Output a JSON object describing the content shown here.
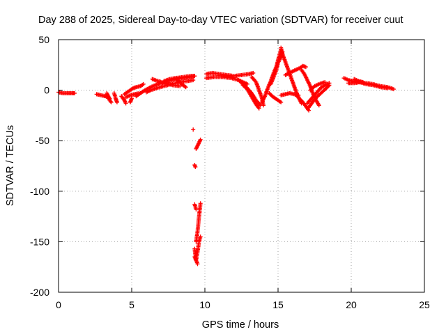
{
  "chart_data": {
    "type": "scatter",
    "title": "Day 288 of 2025, Sidereal Day-to-day VTEC variation (SDTVAR) for receiver cuut",
    "xlabel": "GPS time / hours",
    "ylabel": "SDTVAR / TECUs",
    "xlim": [
      0,
      25
    ],
    "ylim": [
      -200,
      50
    ],
    "xticks": [
      "0",
      "5",
      "10",
      "15",
      "20",
      "25"
    ],
    "yticks": [
      "50",
      "0",
      "-50",
      "-100",
      "-150",
      "-200"
    ],
    "grid": true,
    "marker": "+",
    "color": "#ff0000",
    "series": [
      {
        "name": "SDTVAR",
        "segments": [
          [
            [
              0.0,
              -2
            ],
            [
              0.3,
              -3
            ],
            [
              0.6,
              -3
            ],
            [
              0.9,
              -3
            ],
            [
              1.1,
              -3
            ]
          ],
          [
            [
              2.6,
              -4
            ],
            [
              2.9,
              -5
            ],
            [
              3.2,
              -6
            ],
            [
              3.5,
              -8
            ]
          ],
          [
            [
              3.3,
              -3
            ],
            [
              3.4,
              -6
            ],
            [
              3.5,
              -10
            ],
            [
              3.6,
              -12
            ]
          ],
          [
            [
              3.8,
              -3
            ],
            [
              3.9,
              -8
            ],
            [
              4.0,
              -12
            ]
          ],
          [
            [
              4.3,
              -6
            ],
            [
              4.5,
              -10
            ],
            [
              4.6,
              -13
            ]
          ],
          [
            [
              4.5,
              -4
            ],
            [
              4.7,
              -2
            ],
            [
              4.9,
              0
            ],
            [
              5.1,
              2
            ],
            [
              5.3,
              3
            ],
            [
              5.6,
              4
            ],
            [
              5.8,
              6
            ]
          ],
          [
            [
              4.6,
              -7
            ],
            [
              4.9,
              -5
            ],
            [
              5.2,
              -4
            ],
            [
              5.5,
              -3
            ]
          ],
          [
            [
              4.9,
              -12
            ],
            [
              5.0,
              -8
            ]
          ],
          [
            [
              5.3,
              -6
            ],
            [
              5.6,
              -3
            ],
            [
              5.9,
              0
            ],
            [
              6.3,
              3
            ],
            [
              6.6,
              5
            ],
            [
              7.0,
              7
            ],
            [
              7.5,
              9
            ],
            [
              8.0,
              11
            ],
            [
              8.5,
              12
            ],
            [
              9.0,
              13
            ],
            [
              9.3,
              14
            ]
          ],
          [
            [
              6.0,
              -2
            ],
            [
              6.3,
              0
            ],
            [
              6.7,
              2
            ],
            [
              7.2,
              4
            ],
            [
              7.7,
              6
            ],
            [
              8.3,
              8
            ],
            [
              8.8,
              9
            ],
            [
              9.2,
              10
            ]
          ],
          [
            [
              6.4,
              11
            ],
            [
              6.8,
              9
            ],
            [
              7.3,
              7
            ],
            [
              7.8,
              5
            ],
            [
              8.3,
              4
            ]
          ],
          [
            [
              7.2,
              9
            ],
            [
              7.6,
              11
            ],
            [
              8.0,
              12
            ],
            [
              8.5,
              13
            ],
            [
              9.0,
              14
            ],
            [
              9.3,
              14
            ]
          ],
          [
            [
              8.1,
              10
            ],
            [
              8.3,
              8
            ],
            [
              8.5,
              5
            ],
            [
              8.7,
              3
            ]
          ],
          [
            [
              9.2,
              -39
            ]
          ],
          [
            [
              9.3,
              -74
            ],
            [
              9.35,
              -76
            ]
          ],
          [
            [
              9.4,
              -58
            ],
            [
              9.5,
              -55
            ],
            [
              9.6,
              -52
            ],
            [
              9.7,
              -49
            ]
          ],
          [
            [
              9.3,
              -113
            ],
            [
              9.4,
              -118
            ]
          ],
          [
            [
              9.4,
              -150
            ],
            [
              9.5,
              -140
            ],
            [
              9.6,
              -125
            ],
            [
              9.7,
              -112
            ]
          ],
          [
            [
              9.3,
              -157
            ],
            [
              9.4,
              -168
            ],
            [
              9.5,
              -160
            ],
            [
              9.6,
              -150
            ],
            [
              9.7,
              -145
            ]
          ],
          [
            [
              9.3,
              -165
            ],
            [
              9.5,
              -172
            ]
          ],
          [
            [
              10.1,
              16
            ],
            [
              10.5,
              17
            ],
            [
              11.0,
              16
            ],
            [
              11.5,
              15
            ],
            [
              12.0,
              14
            ],
            [
              12.5,
              15
            ],
            [
              13.0,
              16
            ],
            [
              13.3,
              17
            ]
          ],
          [
            [
              10.1,
              12
            ],
            [
              10.6,
              13
            ],
            [
              11.2,
              13
            ],
            [
              11.8,
              12
            ],
            [
              12.3,
              10
            ],
            [
              12.6,
              8
            ],
            [
              12.9,
              6
            ]
          ],
          [
            [
              12.3,
              10
            ],
            [
              12.6,
              6
            ],
            [
              12.9,
              2
            ],
            [
              13.2,
              -3
            ],
            [
              13.5,
              -10
            ],
            [
              13.8,
              -15
            ]
          ],
          [
            [
              12.6,
              5
            ],
            [
              12.9,
              1
            ],
            [
              13.1,
              -4
            ],
            [
              13.3,
              -9
            ],
            [
              13.5,
              -14
            ],
            [
              13.7,
              -18
            ]
          ],
          [
            [
              13.2,
              13
            ],
            [
              13.5,
              8
            ],
            [
              13.7,
              0
            ],
            [
              13.9,
              -8
            ],
            [
              14.0,
              -15
            ]
          ],
          [
            [
              13.9,
              -12
            ],
            [
              14.1,
              -6
            ],
            [
              14.3,
              2
            ],
            [
              14.5,
              9
            ],
            [
              14.7,
              17
            ],
            [
              14.9,
              24
            ],
            [
              15.0,
              30
            ],
            [
              15.1,
              35
            ],
            [
              15.2,
              40
            ]
          ],
          [
            [
              14.5,
              6
            ],
            [
              14.7,
              13
            ],
            [
              14.9,
              21
            ],
            [
              15.0,
              27
            ],
            [
              15.2,
              33
            ],
            [
              15.3,
              38
            ]
          ],
          [
            [
              15.2,
              42
            ],
            [
              15.3,
              36
            ],
            [
              15.5,
              28
            ],
            [
              15.7,
              20
            ],
            [
              15.9,
              12
            ],
            [
              16.1,
              4
            ],
            [
              16.3,
              -4
            ],
            [
              16.5,
              -10
            ],
            [
              16.6,
              -13
            ]
          ],
          [
            [
              14.4,
              -3
            ],
            [
              14.6,
              -6
            ],
            [
              14.8,
              -8
            ],
            [
              15.0,
              -10
            ],
            [
              15.2,
              -12
            ]
          ],
          [
            [
              15.2,
              -5
            ],
            [
              15.5,
              -4
            ],
            [
              15.8,
              -3
            ],
            [
              16.1,
              -4
            ],
            [
              16.4,
              -5
            ]
          ],
          [
            [
              15.5,
              15
            ],
            [
              15.9,
              18
            ],
            [
              16.2,
              20
            ],
            [
              16.5,
              22
            ],
            [
              16.7,
              24
            ],
            [
              16.9,
              23
            ]
          ],
          [
            [
              16.3,
              -6
            ],
            [
              16.5,
              -9
            ],
            [
              16.7,
              -12
            ],
            [
              16.9,
              -16
            ],
            [
              17.1,
              -20
            ]
          ],
          [
            [
              16.6,
              20
            ],
            [
              16.8,
              16
            ],
            [
              17.0,
              10
            ],
            [
              17.2,
              4
            ],
            [
              17.4,
              -4
            ],
            [
              17.6,
              -10
            ],
            [
              17.8,
              -15
            ]
          ],
          [
            [
              17.0,
              -13
            ],
            [
              17.3,
              -8
            ],
            [
              17.6,
              -3
            ],
            [
              17.9,
              2
            ],
            [
              18.2,
              5
            ],
            [
              18.5,
              7
            ]
          ],
          [
            [
              17.2,
              0
            ],
            [
              17.5,
              4
            ],
            [
              17.8,
              6
            ],
            [
              18.2,
              8
            ]
          ],
          [
            [
              17.1,
              -17
            ],
            [
              17.4,
              -11
            ],
            [
              17.7,
              -6
            ],
            [
              18.0,
              -2
            ],
            [
              18.3,
              2
            ],
            [
              18.5,
              5
            ]
          ],
          [
            [
              19.5,
              12
            ],
            [
              19.8,
              10
            ],
            [
              20.1,
              9
            ],
            [
              20.5,
              8
            ],
            [
              21.0,
              7
            ],
            [
              21.5,
              6
            ],
            [
              22.0,
              4
            ],
            [
              22.5,
              3
            ],
            [
              22.9,
              1
            ]
          ],
          [
            [
              19.8,
              7
            ],
            [
              20.2,
              7
            ],
            [
              20.6,
              8
            ],
            [
              21.0,
              6
            ],
            [
              21.5,
              5
            ],
            [
              22.0,
              3
            ],
            [
              22.5,
              2
            ]
          ],
          [
            [
              20.2,
              11
            ],
            [
              20.5,
              9
            ],
            [
              20.8,
              8
            ]
          ]
        ]
      }
    ]
  }
}
